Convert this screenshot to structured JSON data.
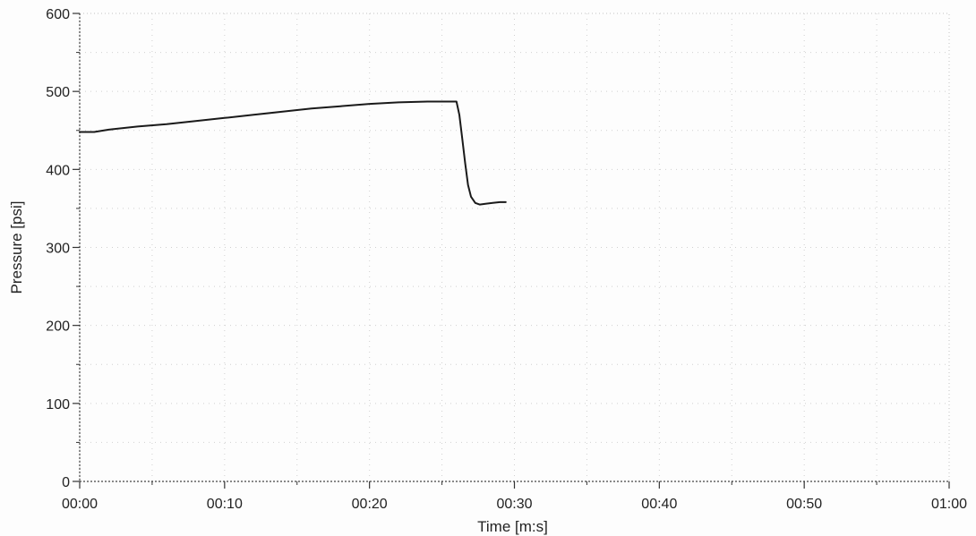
{
  "chart_data": {
    "type": "line",
    "title": "",
    "xlabel": "Time [m:s]",
    "ylabel": "Pressure [psi]",
    "x_unit": "seconds",
    "xlim": [
      0,
      60
    ],
    "ylim": [
      0,
      600
    ],
    "x_ticks": [
      0,
      10,
      20,
      30,
      40,
      50,
      60
    ],
    "x_tick_labels": [
      "00:00",
      "00:10",
      "00:20",
      "00:30",
      "00:40",
      "00:50",
      "01:00"
    ],
    "y_ticks": [
      0,
      100,
      200,
      300,
      400,
      500,
      600
    ],
    "y_tick_labels": [
      "0",
      "100",
      "200",
      "300",
      "400",
      "500",
      "600"
    ],
    "grid": true,
    "legend": false,
    "series": [
      {
        "color": "#1a1a1a",
        "x": [
          0,
          1,
          2,
          4,
          6,
          8,
          10,
          12,
          14,
          16,
          18,
          20,
          22,
          24,
          25,
          26,
          26.2,
          26.4,
          26.6,
          26.8,
          27,
          27.3,
          27.6,
          28,
          28.5,
          29,
          29.4
        ],
        "y": [
          448,
          448,
          451,
          455,
          458,
          462,
          466,
          470,
          474,
          478,
          481,
          484,
          486,
          487,
          487,
          487,
          470,
          440,
          408,
          380,
          365,
          357,
          355,
          356,
          357,
          358,
          358
        ]
      }
    ]
  }
}
